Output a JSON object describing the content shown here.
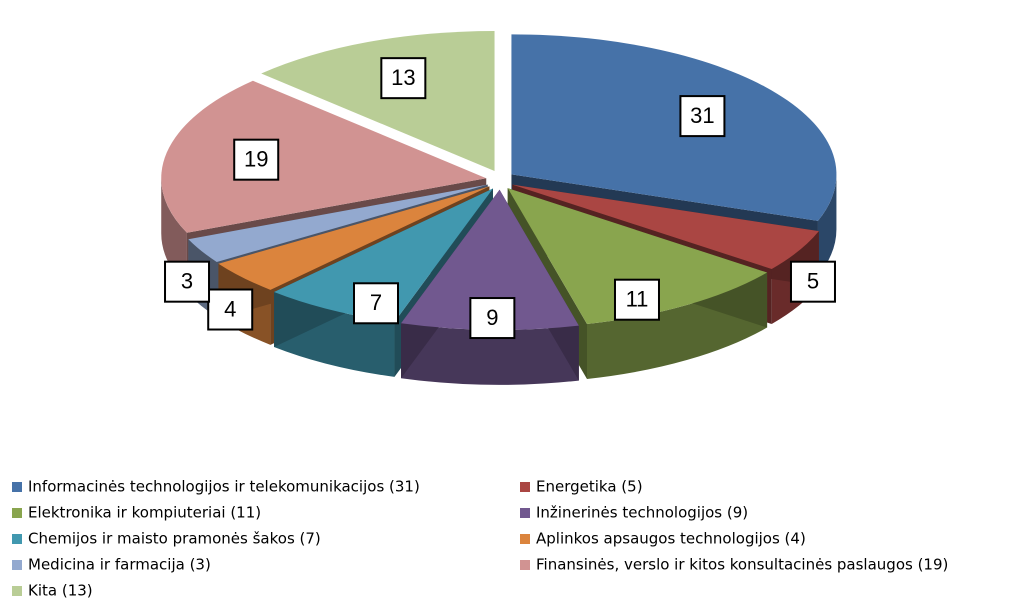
{
  "chart_data": {
    "type": "pie",
    "categories": [
      "Informacinės technologijos ir telekomunikacijos (31)",
      "Energetika (5)",
      "Elektronika ir kompiuteriai (11)",
      "Inžinerinės technologijos (9)",
      "Chemijos ir maisto pramonės šakos (7)",
      "Aplinkos apsaugos technologijos (4)",
      "Medicina ir farmacija (3)",
      "Finansinės, verslo ir kitos konsultacinės paslaugos (19)",
      "Kita (13)"
    ],
    "values": [
      31,
      5,
      11,
      9,
      7,
      4,
      3,
      19,
      13
    ],
    "colors": [
      "#4672a8",
      "#aa4643",
      "#89a54e",
      "#71588f",
      "#4198af",
      "#db843d",
      "#93a9cf",
      "#d19392",
      "#b9cd96"
    ],
    "legend": "bottom"
  }
}
